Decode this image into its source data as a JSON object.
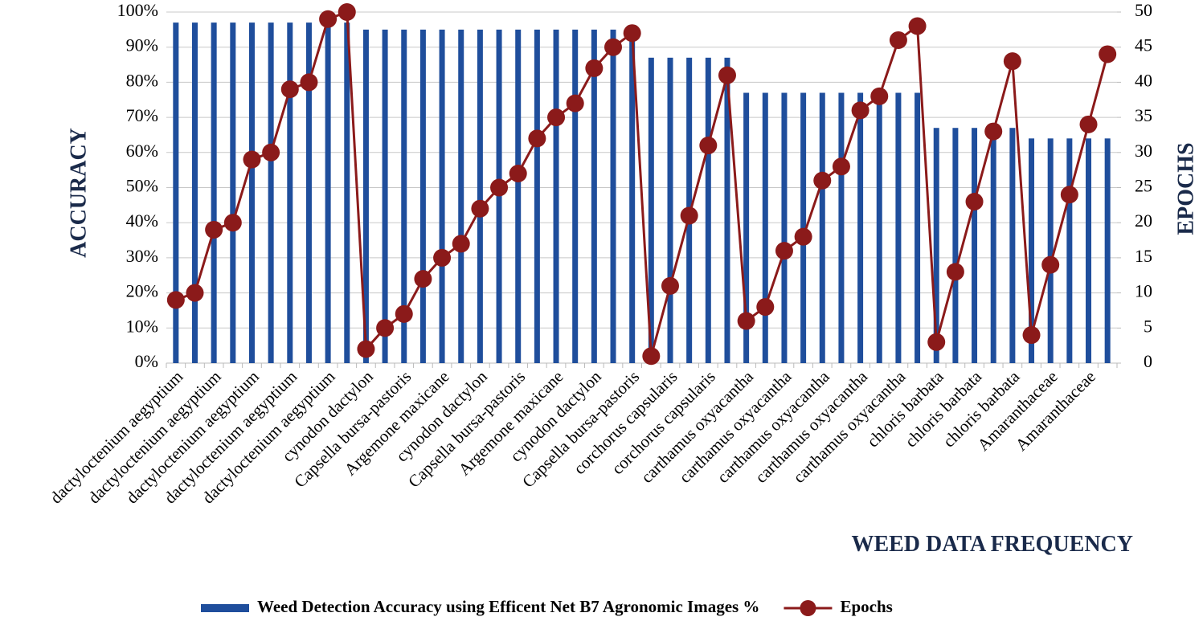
{
  "chart_data": {
    "type": "bar_line",
    "x_label": "WEED DATA FREQUENCY",
    "y_label": "ACCURACY",
    "y2_label": "EPOCHS",
    "categories": [
      "dactyloctenium aegyptium",
      null,
      "dactyloctenium aegyptium",
      null,
      "dactyloctenium aegyptium",
      null,
      "dactyloctenium aegyptium",
      null,
      "dactyloctenium aegyptium",
      null,
      "cynodon dactylon",
      null,
      "Capsella bursa-pastoris",
      null,
      "Argemone maxicane",
      null,
      "cynodon dactylon",
      null,
      "Capsella bursa-pastoris",
      null,
      "Argemone maxicane",
      null,
      "cynodon dactylon",
      null,
      "Capsella bursa-pastoris",
      null,
      "corchorus capsularis",
      null,
      "corchorus capsularis",
      null,
      "carthamus oxyacantha",
      null,
      "carthamus oxyacantha",
      null,
      "carthamus oxyacantha",
      null,
      "carthamus oxyacantha",
      null,
      "carthamus oxyacantha",
      null,
      "chloris barbata",
      null,
      "chloris barbata",
      null,
      "chloris barbata",
      null,
      "Amaranthaceae",
      null,
      "Amaranthaceae",
      null
    ],
    "series": [
      {
        "name": "Weed Detection Accuracy using Efficent Net B7 Agronomic Images %",
        "color": "#1f4e9c",
        "kind": "bar",
        "values": [
          97,
          97,
          97,
          97,
          97,
          97,
          97,
          97,
          97,
          97,
          95,
          95,
          95,
          95,
          95,
          95,
          95,
          95,
          95,
          95,
          95,
          95,
          95,
          95,
          95,
          87,
          87,
          87,
          87,
          87,
          77,
          77,
          77,
          77,
          77,
          77,
          77,
          77,
          77,
          77,
          67,
          67,
          67,
          67,
          67,
          64,
          64,
          64,
          64,
          64
        ]
      },
      {
        "name": "Epochs",
        "color": "#8b1a1a",
        "kind": "line",
        "axis": "y2",
        "values": [
          9,
          10,
          19,
          20,
          29,
          30,
          39,
          40,
          49,
          50,
          2,
          5,
          7,
          12,
          15,
          17,
          22,
          25,
          27,
          32,
          35,
          37,
          42,
          45,
          47,
          1,
          11,
          21,
          31,
          41,
          6,
          8,
          16,
          18,
          26,
          28,
          36,
          38,
          46,
          48,
          3,
          13,
          23,
          33,
          43,
          4,
          14,
          24,
          34,
          44
        ]
      }
    ],
    "ylim": [
      0,
      100
    ],
    "yticks": [
      {
        "value": 0,
        "label": "0%"
      },
      {
        "value": 10,
        "label": "10%"
      },
      {
        "value": 20,
        "label": "20%"
      },
      {
        "value": 30,
        "label": "30%"
      },
      {
        "value": 40,
        "label": "40%"
      },
      {
        "value": 50,
        "label": "50%"
      },
      {
        "value": 60,
        "label": "60%"
      },
      {
        "value": 70,
        "label": "70%"
      },
      {
        "value": 80,
        "label": "80%"
      },
      {
        "value": 90,
        "label": "90%"
      },
      {
        "value": 100,
        "label": "100%"
      }
    ],
    "y2lim": [
      0,
      50
    ],
    "y2ticks": [
      0,
      5,
      10,
      15,
      20,
      25,
      30,
      35,
      40,
      45,
      50
    ],
    "grid": true,
    "legend": "bottom"
  }
}
